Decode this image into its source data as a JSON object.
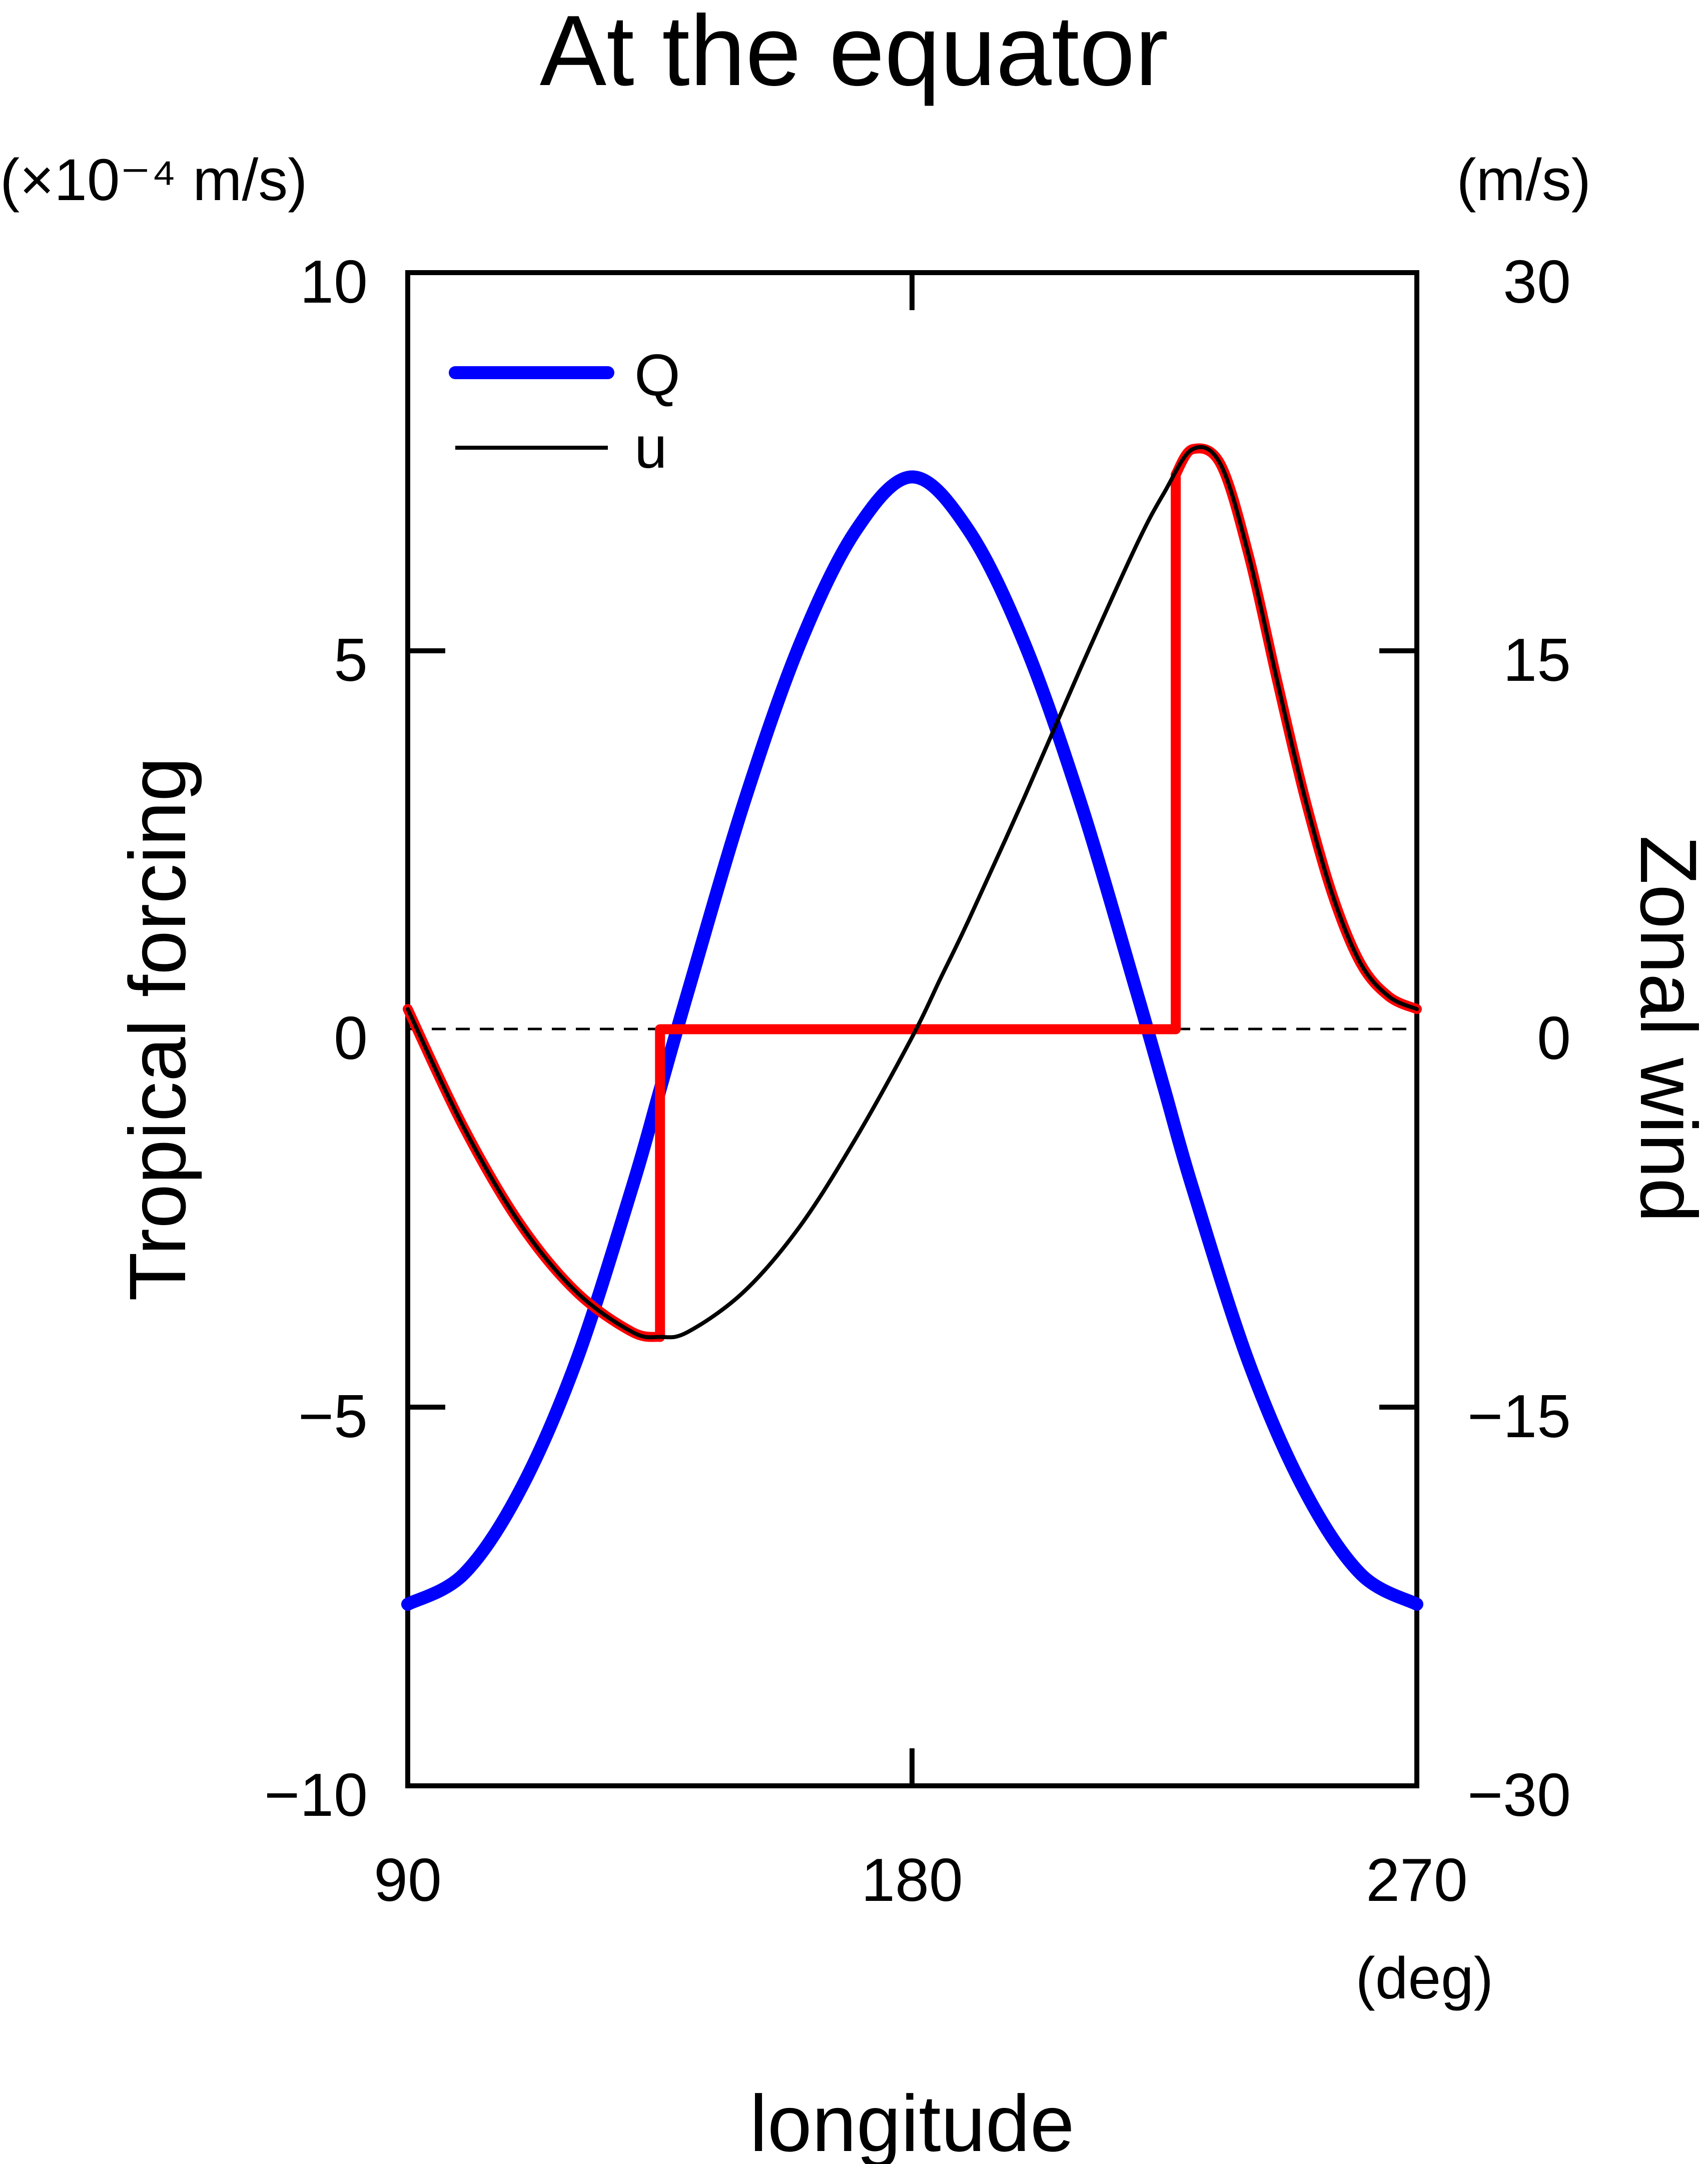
{
  "chart_data": {
    "type": "line",
    "title": "At the equator",
    "xlabel": "longitude",
    "x_unit": "(deg)",
    "ylabel_left": "Tropical forcing",
    "ylabel_right": "Zonal wind",
    "left_unit": "(×10⁻⁴ m/s)",
    "right_unit": "(m/s)",
    "xlim": [
      90,
      270
    ],
    "ylim_left": [
      -10,
      10
    ],
    "ylim_right": [
      -30,
      30
    ],
    "xticks": [
      "90",
      "180",
      "270"
    ],
    "yticks_left": [
      "10",
      "5",
      "0",
      "−5",
      "−10"
    ],
    "yticks_right": [
      "30",
      "15",
      "0",
      "−15",
      "−30"
    ],
    "legend_position": "top-left",
    "grid": false,
    "zero_line": "dashed",
    "series": [
      {
        "name": "Q",
        "axis": "left",
        "color": "#0000ff",
        "x": [
          90,
          100,
          110,
          120,
          130,
          135,
          140,
          150,
          160,
          170,
          180,
          190,
          200,
          210,
          220,
          225,
          230,
          240,
          250,
          260,
          270
        ],
        "y": [
          -7.6,
          -7.2,
          -6.1,
          -4.4,
          -2.1,
          -0.8,
          0.5,
          3.0,
          5.1,
          6.6,
          7.3,
          6.6,
          5.1,
          3.0,
          0.5,
          -0.8,
          -2.1,
          -4.4,
          -6.1,
          -7.2,
          -7.6
        ]
      },
      {
        "name": "u",
        "axis": "right",
        "color": "#000000",
        "x": [
          90,
          100,
          110,
          120,
          130,
          135,
          140,
          150,
          160,
          170,
          180,
          185,
          190,
          200,
          210,
          220,
          225,
          230,
          235,
          240,
          245,
          250,
          255,
          260,
          265,
          270
        ],
        "y": [
          0.8,
          -3.9,
          -7.7,
          -10.4,
          -12.0,
          -12.2,
          -12.0,
          -10.4,
          -7.8,
          -4.3,
          -0.3,
          2.0,
          4.3,
          9.2,
          14.3,
          19.2,
          21.3,
          23.0,
          22.4,
          18.8,
          13.9,
          9.2,
          5.3,
          2.6,
          1.3,
          0.8
        ]
      },
      {
        "name": "",
        "axis": "right",
        "color": "#ff0000",
        "x": [
          90,
          100,
          110,
          120,
          130,
          135,
          135,
          227,
          227,
          230,
          235,
          240,
          245,
          250,
          255,
          260,
          265,
          270
        ],
        "y": [
          0.8,
          -3.9,
          -7.7,
          -10.4,
          -12.0,
          -12.2,
          0,
          0,
          22.0,
          23.0,
          22.4,
          18.8,
          13.9,
          9.2,
          5.3,
          2.6,
          1.3,
          0.8
        ]
      }
    ]
  }
}
